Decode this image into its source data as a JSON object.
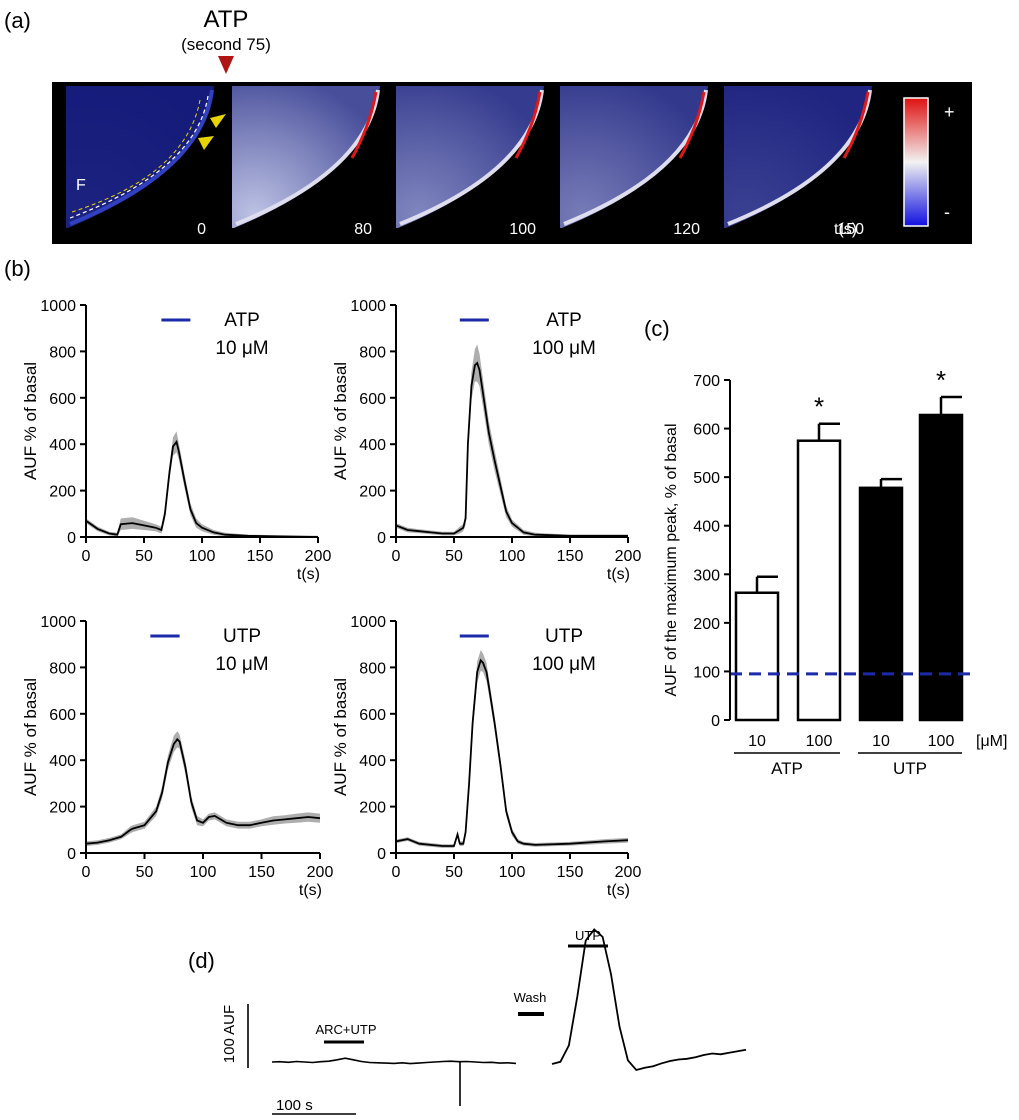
{
  "panel_labels": {
    "a": "(a)",
    "b": "(b)",
    "c": "(c)",
    "d": "(d)"
  },
  "colors": {
    "trace_blue": "#1a2aa8",
    "error_grey": "#9a9a9a",
    "arrow_red": "#b01414",
    "arrow_yellow": "#e6d300",
    "baseline_blue": "#1a2aa8"
  },
  "panel_a": {
    "stimulus_label": "ATP",
    "stimulus_time": "(second 75)",
    "region_label": "F",
    "frames": [
      {
        "time": "0",
        "intensity": 0.05
      },
      {
        "time": "80",
        "intensity": 0.85
      },
      {
        "time": "100",
        "intensity": 0.55
      },
      {
        "time": "120",
        "intensity": 0.5
      },
      {
        "time": "150",
        "intensity": 0.2
      }
    ],
    "time_unit": "t(s)",
    "scale_plus": "+",
    "scale_minus": "-"
  },
  "chart_data": [
    {
      "type": "line",
      "panel": "b",
      "stimulus": "ATP",
      "concentration": "10 μM",
      "ylabel": "AUF % of basal",
      "xlabel": "t(s)",
      "xlim": [
        0,
        200
      ],
      "ylim": [
        0,
        1000
      ],
      "xticks": [
        "0",
        "50",
        "100",
        "150",
        "200"
      ],
      "yticks": [
        "0",
        "200",
        "400",
        "600",
        "800",
        "1000"
      ],
      "stimulus_bar_x": [
        65,
        90
      ],
      "x": [
        0,
        10,
        20,
        27,
        30,
        40,
        50,
        60,
        65,
        68,
        72,
        75,
        78,
        80,
        85,
        90,
        95,
        100,
        110,
        120,
        140,
        160,
        200
      ],
      "y": [
        70,
        35,
        15,
        10,
        55,
        60,
        50,
        40,
        30,
        100,
        280,
        390,
        410,
        370,
        240,
        120,
        60,
        40,
        20,
        10,
        5,
        3,
        0
      ],
      "err": [
        10,
        10,
        8,
        8,
        25,
        25,
        20,
        15,
        15,
        25,
        30,
        40,
        45,
        35,
        30,
        25,
        20,
        15,
        10,
        8,
        5,
        5,
        5
      ]
    },
    {
      "type": "line",
      "panel": "b",
      "stimulus": "ATP",
      "concentration": "100 μM",
      "ylabel": "AUF % of basal",
      "xlabel": "t(s)",
      "xlim": [
        0,
        200
      ],
      "ylim": [
        0,
        1000
      ],
      "xticks": [
        "0",
        "50",
        "100",
        "150",
        "200"
      ],
      "yticks": [
        "0",
        "200",
        "400",
        "600",
        "800",
        "1000"
      ],
      "stimulus_bar_x": [
        55,
        80
      ],
      "x": [
        0,
        10,
        20,
        30,
        40,
        50,
        55,
        58,
        60,
        62,
        65,
        68,
        70,
        72,
        75,
        80,
        85,
        90,
        95,
        100,
        110,
        120,
        150,
        200
      ],
      "y": [
        50,
        30,
        25,
        20,
        15,
        15,
        30,
        40,
        80,
        400,
        650,
        740,
        750,
        720,
        620,
        450,
        330,
        220,
        110,
        60,
        20,
        10,
        5,
        5
      ],
      "err": [
        10,
        10,
        8,
        8,
        8,
        8,
        15,
        15,
        25,
        40,
        60,
        70,
        80,
        70,
        60,
        50,
        45,
        35,
        25,
        15,
        10,
        8,
        5,
        5
      ]
    },
    {
      "type": "line",
      "panel": "b",
      "stimulus": "UTP",
      "concentration": "10 μM",
      "ylabel": "AUF % of basal",
      "xlabel": "t(s)",
      "xlim": [
        0,
        200
      ],
      "ylim": [
        0,
        1000
      ],
      "xticks": [
        "0",
        "50",
        "100",
        "150",
        "200"
      ],
      "yticks": [
        "0",
        "200",
        "400",
        "600",
        "800",
        "1000"
      ],
      "stimulus_bar_x": [
        55,
        80
      ],
      "x": [
        0,
        10,
        20,
        30,
        38,
        40,
        50,
        60,
        65,
        70,
        75,
        78,
        80,
        85,
        90,
        95,
        100,
        105,
        110,
        120,
        130,
        140,
        150,
        160,
        170,
        180,
        190,
        200
      ],
      "y": [
        40,
        45,
        55,
        70,
        100,
        105,
        120,
        180,
        260,
        390,
        470,
        490,
        480,
        370,
        220,
        140,
        130,
        155,
        160,
        130,
        120,
        120,
        130,
        140,
        145,
        150,
        155,
        150
      ],
      "err": [
        10,
        10,
        10,
        10,
        15,
        15,
        15,
        20,
        25,
        30,
        35,
        35,
        30,
        30,
        25,
        20,
        15,
        15,
        15,
        15,
        15,
        15,
        15,
        18,
        18,
        20,
        20,
        20
      ]
    },
    {
      "type": "line",
      "panel": "b",
      "stimulus": "UTP",
      "concentration": "100 μM",
      "ylabel": "AUF % of basal",
      "xlabel": "t(s)",
      "xlim": [
        0,
        200
      ],
      "ylim": [
        0,
        1000
      ],
      "xticks": [
        "0",
        "50",
        "100",
        "150",
        "200"
      ],
      "yticks": [
        "0",
        "200",
        "400",
        "600",
        "800",
        "1000"
      ],
      "stimulus_bar_x": [
        55,
        80
      ],
      "x": [
        0,
        10,
        20,
        30,
        40,
        50,
        53,
        55,
        58,
        60,
        63,
        66,
        70,
        73,
        75,
        78,
        80,
        85,
        90,
        95,
        100,
        105,
        110,
        120,
        150,
        180,
        200
      ],
      "y": [
        50,
        60,
        40,
        35,
        30,
        30,
        80,
        40,
        40,
        90,
        300,
        560,
        780,
        830,
        820,
        780,
        720,
        560,
        380,
        180,
        90,
        50,
        40,
        35,
        40,
        50,
        55
      ],
      "err": [
        8,
        8,
        8,
        8,
        8,
        8,
        10,
        10,
        10,
        15,
        30,
        40,
        45,
        45,
        40,
        40,
        35,
        30,
        25,
        20,
        15,
        10,
        8,
        8,
        8,
        10,
        10
      ]
    },
    {
      "type": "bar",
      "panel": "c",
      "ylabel": "AUF of the maximum peak, % of basal",
      "ylim": [
        0,
        700
      ],
      "yticks": [
        "0",
        "100",
        "200",
        "300",
        "400",
        "500",
        "600",
        "700"
      ],
      "categories": [
        "10",
        "100",
        "10",
        "100"
      ],
      "groups": [
        "ATP",
        "UTP"
      ],
      "unit": "[μM]",
      "values": [
        262,
        575,
        478,
        628
      ],
      "errors": [
        33,
        35,
        18,
        37
      ],
      "fill": [
        "white",
        "white",
        "black",
        "black"
      ],
      "significance": [
        "",
        "*",
        "",
        "*"
      ],
      "baseline": 95
    },
    {
      "type": "line",
      "panel": "d",
      "scale_y_label": "100  AUF",
      "scale_x_label": "100 s",
      "segment1_label": "ARC+UTP",
      "wash_label": "Wash",
      "segment2_label": "UTP",
      "segment1_y": [
        0,
        1,
        -1,
        2,
        0,
        -2,
        1,
        3,
        8,
        14,
        8,
        2,
        -2,
        -3,
        -4,
        -5,
        -3,
        -6,
        -4,
        -2,
        0,
        2,
        3,
        1,
        2,
        0,
        -2,
        -1,
        -4,
        -3,
        -5
      ],
      "segment2_y": [
        0,
        3,
        25,
        90,
        165,
        180,
        170,
        120,
        50,
        5,
        -8,
        -5,
        -3,
        1,
        4,
        6,
        7,
        9,
        12,
        14,
        13,
        15,
        17,
        19
      ]
    }
  ]
}
